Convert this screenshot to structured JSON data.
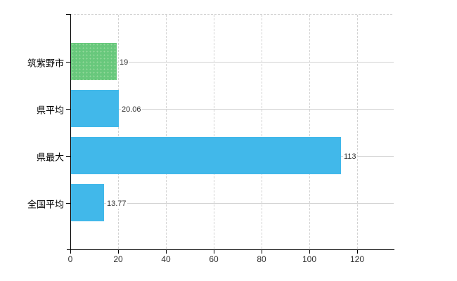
{
  "chart_data": {
    "type": "bar",
    "orientation": "horizontal",
    "title": "",
    "categories": [
      "筑紫野市",
      "県平均",
      "県最大",
      "全国平均"
    ],
    "values": [
      19,
      20.06,
      113,
      13.77
    ],
    "value_labels": [
      "19",
      "20.06",
      "113",
      "13.77"
    ],
    "bar_colors": [
      "#68c87c",
      "#41b8ea",
      "#41b8ea",
      "#41b8ea"
    ],
    "x_tick_labels": [
      "0",
      "20",
      "40",
      "60",
      "80",
      "100",
      "120"
    ],
    "x_tick_values": [
      0,
      20,
      40,
      60,
      80,
      100,
      120
    ],
    "xlim": [
      0,
      135.3
    ],
    "xlabel": "",
    "ylabel": "",
    "grid": true,
    "legend": false,
    "colors": {
      "highlight_bar": "#68c87c",
      "default_bar": "#41b8ea",
      "grid_line": "#d2d2d2",
      "axis_line": "#000000",
      "tick_label": "#333333",
      "category_label": "#000000",
      "background": "#ffffff"
    }
  }
}
